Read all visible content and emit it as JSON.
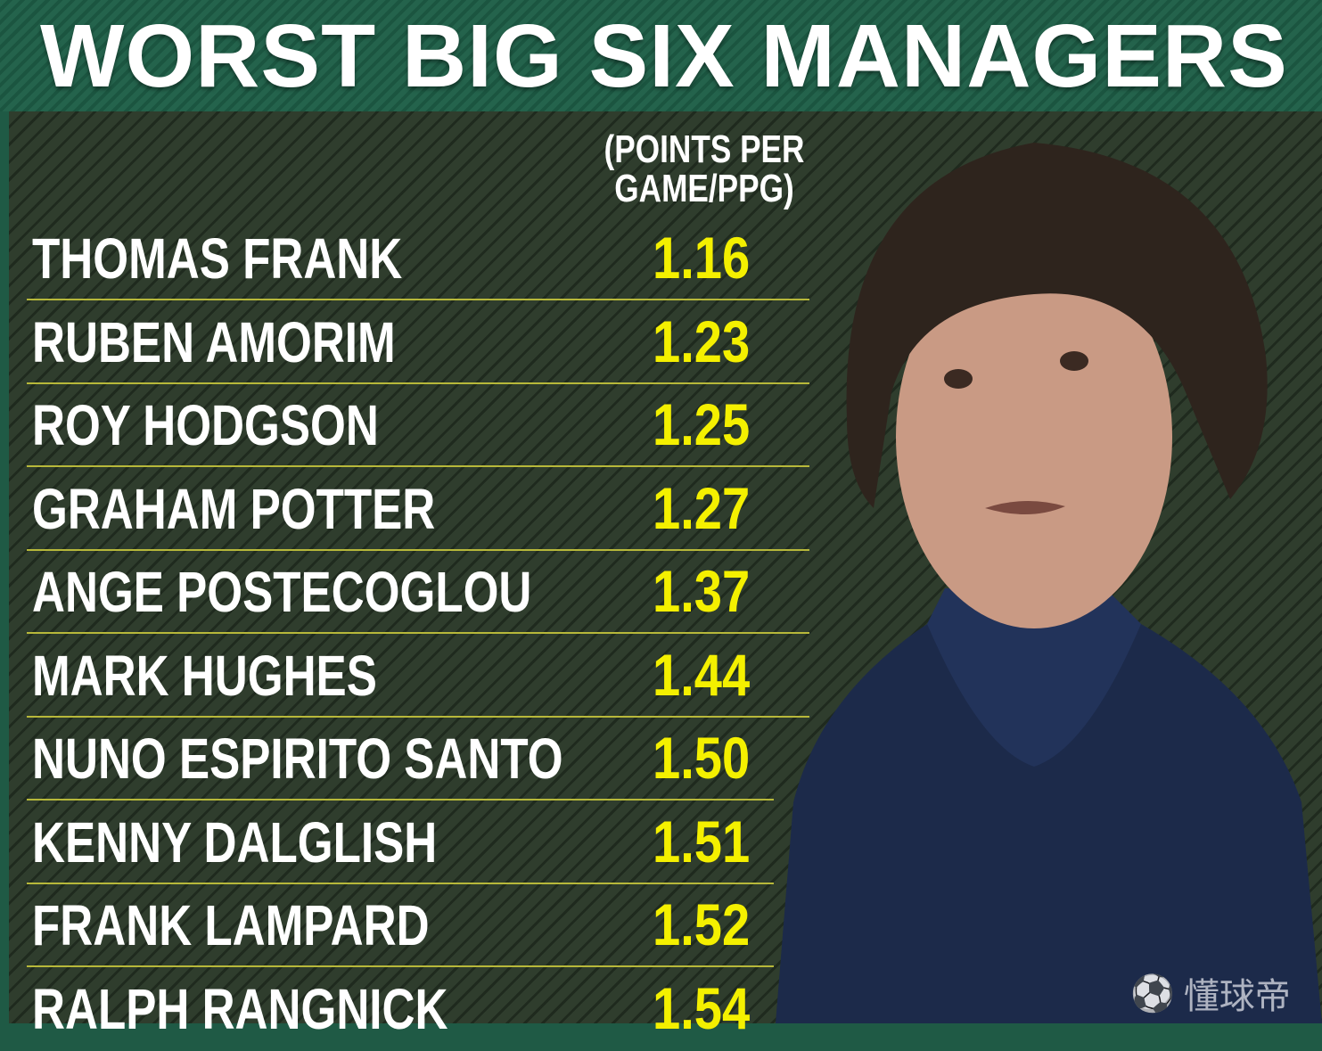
{
  "title": "WORST BIG SIX MANAGERS",
  "column_header": "(POINTS PER GAME/PPG)",
  "colors": {
    "background": "#2f3d2d",
    "border": "#1f5a45",
    "value": "#f4f000",
    "divider": "#b7b83a"
  },
  "chart_data": {
    "type": "table",
    "title": "WORST BIG SIX MANAGERS",
    "columns": [
      "",
      "(POINTS PER GAME/PPG)"
    ],
    "rows": [
      {
        "manager": "THOMAS FRANK",
        "ppg": "1.16"
      },
      {
        "manager": "RUBEN AMORIM",
        "ppg": "1.23"
      },
      {
        "manager": "ROY HODGSON",
        "ppg": "1.25"
      },
      {
        "manager": "GRAHAM POTTER",
        "ppg": "1.27"
      },
      {
        "manager": "ANGE POSTECOGLOU",
        "ppg": "1.37"
      },
      {
        "manager": "MARK HUGHES",
        "ppg": "1.44"
      },
      {
        "manager": "NUNO ESPIRITO SANTO",
        "ppg": "1.50"
      },
      {
        "manager": "KENNY DALGLISH",
        "ppg": "1.51"
      },
      {
        "manager": "FRANK LAMPARD",
        "ppg": "1.52"
      },
      {
        "manager": "RALPH RANGNICK",
        "ppg": "1.54"
      }
    ]
  },
  "watermark": "懂球帝",
  "watermark_icon": "football-icon"
}
